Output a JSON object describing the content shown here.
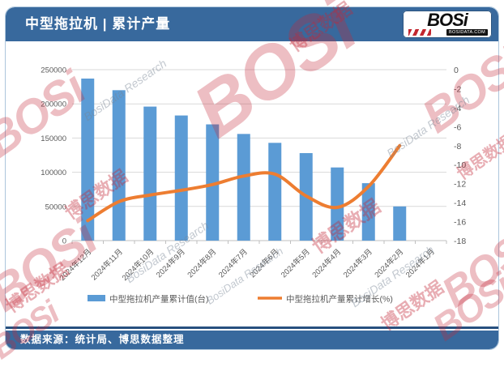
{
  "header": {
    "title": "中型拖拉机 | 累计产量"
  },
  "logo": {
    "brand": "BOSi",
    "domain": "BOSIDATA.COM"
  },
  "footer": {
    "text": "数据来源：统计局、博思数据整理"
  },
  "watermark": {
    "brand": "BOSi",
    "cn": "博思数据",
    "en": "BosiData Research"
  },
  "colors": {
    "header_bg": "#38699d",
    "bar": "#5B9BD5",
    "line": "#ED7D31",
    "grid": "#D9D9D9",
    "axis_line": "#BFBFBF",
    "axis_text": "#595959",
    "divider": "#27507f"
  },
  "chart_data": {
    "type": "bar",
    "subtype": "bar-line-combo",
    "title": "中型拖拉机 | 累计产量",
    "categories": [
      "2024年12月",
      "2024年11月",
      "2024年10月",
      "2024年9月",
      "2024年8月",
      "2024年7月",
      "2024年6月",
      "2024年5月",
      "2024年4月",
      "2024年3月",
      "2024年2月",
      "2024年1月"
    ],
    "series": [
      {
        "name": "中型拖拉机产量累计值(台)",
        "type": "bar",
        "axis": "left",
        "color": "#5B9BD5",
        "values": [
          237000,
          220000,
          196000,
          183000,
          170000,
          156000,
          143000,
          128000,
          107000,
          84000,
          50000,
          null
        ]
      },
      {
        "name": "中型拖拉机产量累计增长(%)",
        "type": "line",
        "axis": "right",
        "color": "#ED7D31",
        "values": [
          -15.9,
          -13.9,
          -13.2,
          -12.7,
          -12.1,
          -11.2,
          -11.0,
          -13.3,
          -14.5,
          -12.3,
          -8.0,
          null
        ]
      }
    ],
    "left_axis": {
      "min": 0,
      "max": 250000,
      "step": 50000
    },
    "right_axis": {
      "min": -18,
      "max": 0,
      "step": 2
    },
    "grid": true,
    "legend_position": "bottom",
    "xlabel": "",
    "ylabel": ""
  }
}
